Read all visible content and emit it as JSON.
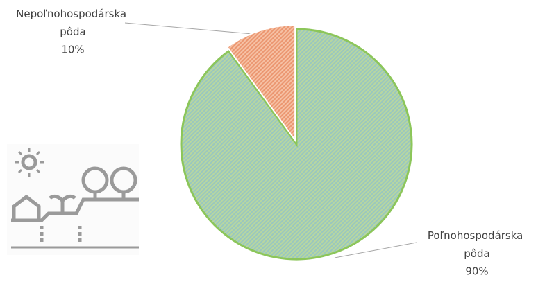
{
  "chart_data": {
    "type": "pie",
    "categories": [
      "Poľnohospodárska pôda",
      "Nepoľnohospodárska pôda"
    ],
    "values": [
      90,
      10
    ],
    "value_labels": [
      "90%",
      "10%"
    ],
    "colors": [
      "#8cc65a",
      "#f2a57e"
    ]
  }
}
